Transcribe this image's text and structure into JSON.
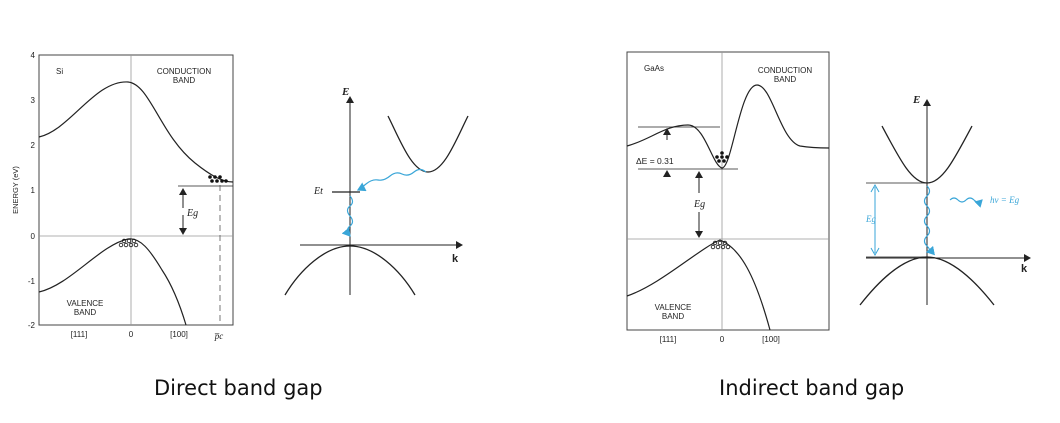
{
  "colors": {
    "accent": "#3aa6d8",
    "line": "#222222",
    "frame": "#444444"
  },
  "left": {
    "caption": "Direct band gap",
    "band_plot": {
      "material": "Si",
      "conduction_label": [
        "CONDUCTION",
        "BAND"
      ],
      "valence_label": [
        "VALENCE",
        "BAND"
      ],
      "y_axis_label": "ENERGY (eV)",
      "y_ticks": [
        "4",
        "3",
        "2",
        "1",
        "0",
        "-1",
        "-2"
      ],
      "x_ticks": [
        "[111]",
        "0",
        "[100]"
      ],
      "pc_label": "p̅c",
      "gap_label": "Eg"
    },
    "schematic": {
      "e_axis": "E",
      "k_axis": "k",
      "level_label": "Et"
    }
  },
  "right": {
    "caption": "Indirect band gap",
    "band_plot": {
      "material": "GaAs",
      "conduction_label": [
        "CONDUCTION",
        "BAND"
      ],
      "valence_label": [
        "VALENCE",
        "BAND"
      ],
      "delta_label": "ΔE = 0.31",
      "gap_label": "Eg",
      "x_ticks": [
        "[111]",
        "0",
        "[100]"
      ]
    },
    "schematic": {
      "e_axis": "E",
      "k_axis": "k",
      "photon_label": "hν = Eg",
      "gap_label": "Eg"
    }
  }
}
